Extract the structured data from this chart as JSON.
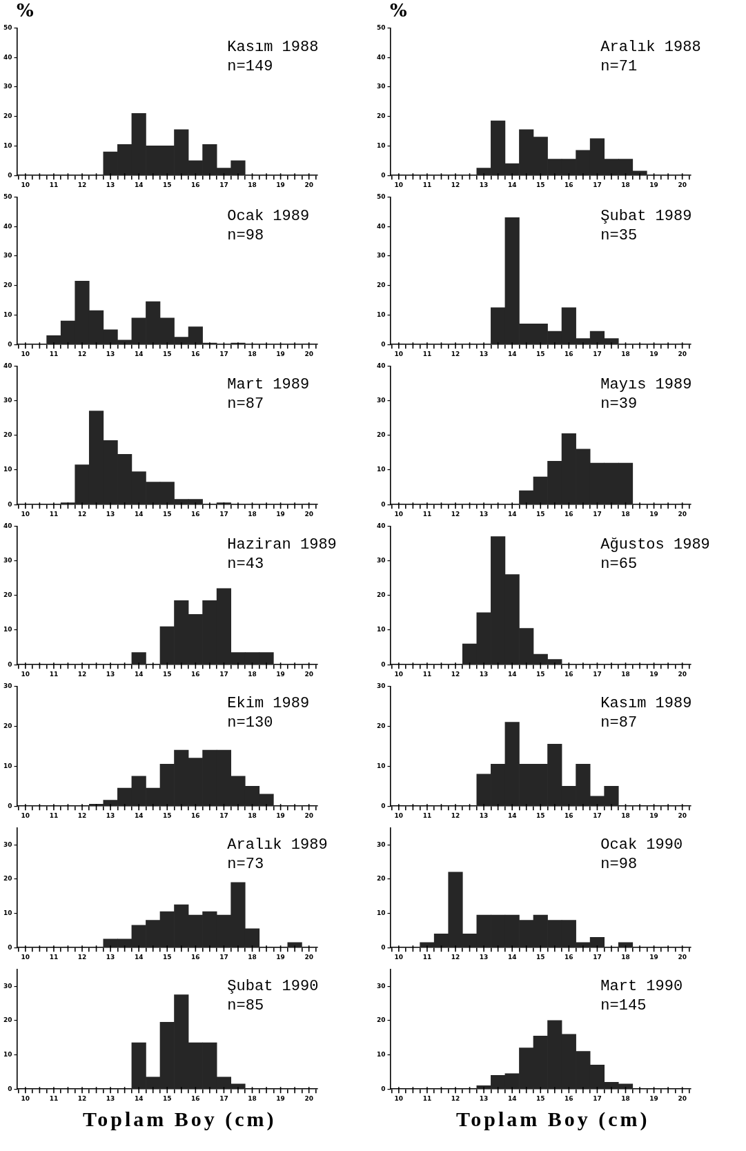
{
  "chart_data": [
    {
      "type": "histogram",
      "title": "Kasım 1988",
      "subtitle": "n=149",
      "ylabel": "%",
      "color": "#262626",
      "bins": [
        10.25,
        10.75,
        11.25,
        11.75,
        12.25,
        12.75,
        13.25,
        13.75,
        14.25,
        14.75,
        15.25,
        15.75,
        16.25,
        16.75,
        17.25,
        17.75,
        18.25,
        18.75,
        19.25,
        19.75
      ],
      "values": [
        0,
        0,
        0,
        0,
        0,
        8,
        10.5,
        21,
        10,
        10,
        15.5,
        5,
        10.5,
        2.5,
        5,
        0,
        0,
        0,
        0
      ],
      "xlim": [
        9.7,
        20.3
      ],
      "xticks": [
        10,
        {
          "value": 10.5,
          "label": null
        },
        11,
        {
          "value": 11.5,
          "label": null
        },
        12,
        {
          "value": 12.5,
          "label": null
        },
        13,
        {
          "value": 13.5,
          "label": null
        },
        14,
        {
          "value": 14.5,
          "label": null
        },
        15,
        {
          "value": 15.5,
          "label": null
        },
        16,
        {
          "value": 16.5,
          "label": null
        },
        17,
        {
          "value": 17.5,
          "label": null
        },
        18,
        {
          "value": 18.5,
          "label": null
        },
        19,
        {
          "value": 19.5,
          "label": null
        },
        20
      ],
      "ylim": [
        0,
        50
      ],
      "yticks": [
        0,
        10,
        20,
        30,
        40,
        50
      ]
    },
    {
      "type": "histogram",
      "title": "Aralık 1988",
      "subtitle": "n=71",
      "ylabel": "%",
      "color": "#262626",
      "bins": [
        10.25,
        10.75,
        11.25,
        11.75,
        12.25,
        12.75,
        13.25,
        13.75,
        14.25,
        14.75,
        15.25,
        15.75,
        16.25,
        16.75,
        17.25,
        17.75,
        18.25,
        18.75,
        19.25,
        19.75
      ],
      "values": [
        0,
        0,
        0,
        0,
        0,
        2.5,
        18.5,
        4,
        15.5,
        13,
        5.5,
        5.5,
        8.5,
        12.5,
        5.5,
        5.5,
        1.5,
        0,
        0
      ],
      "xlim": [
        9.7,
        20.3
      ],
      "xticks": [
        10,
        {
          "value": 10.5,
          "label": null
        },
        11,
        {
          "value": 11.5,
          "label": null
        },
        12,
        {
          "value": 12.5,
          "label": null
        },
        13,
        {
          "value": 13.5,
          "label": null
        },
        14,
        {
          "value": 14.5,
          "label": null
        },
        15,
        {
          "value": 15.5,
          "label": null
        },
        16,
        {
          "value": 16.5,
          "label": null
        },
        17,
        {
          "value": 17.5,
          "label": null
        },
        18,
        {
          "value": 18.5,
          "label": null
        },
        19,
        {
          "value": 19.5,
          "label": null
        },
        20
      ],
      "ylim": [
        0,
        50
      ],
      "yticks": [
        0,
        10,
        20,
        30,
        40,
        50
      ]
    },
    {
      "type": "histogram",
      "title": "Ocak 1989",
      "subtitle": "n=98",
      "color": "#262626",
      "bins": [
        10.25,
        10.75,
        11.25,
        11.75,
        12.25,
        12.75,
        13.25,
        13.75,
        14.25,
        14.75,
        15.25,
        15.75,
        16.25,
        16.75,
        17.25,
        17.75,
        18.25,
        18.75,
        19.25,
        19.75
      ],
      "values": [
        0,
        3,
        8,
        21.5,
        11.5,
        5,
        1.5,
        9,
        14.5,
        9,
        2.5,
        6,
        0.5,
        0,
        0.5,
        0,
        0,
        0,
        0
      ],
      "xlim": [
        9.7,
        20.3
      ],
      "xticks": [
        10,
        {
          "value": 10.5,
          "label": null
        },
        11,
        {
          "value": 11.5,
          "label": null
        },
        12,
        {
          "value": 12.5,
          "label": null
        },
        13,
        {
          "value": 13.5,
          "label": null
        },
        14,
        {
          "value": 14.5,
          "label": null
        },
        15,
        {
          "value": 15.5,
          "label": null
        },
        16,
        {
          "value": 16.5,
          "label": null
        },
        17,
        {
          "value": 17.5,
          "label": null
        },
        18,
        {
          "value": 18.5,
          "label": null
        },
        19,
        {
          "value": 19.5,
          "label": null
        },
        20
      ],
      "ylim": [
        0,
        50
      ],
      "yticks": [
        0,
        10,
        20,
        30,
        40,
        50
      ]
    },
    {
      "type": "histogram",
      "title": "Şubat 1989",
      "subtitle": "n=35",
      "color": "#262626",
      "bins": [
        10.25,
        10.75,
        11.25,
        11.75,
        12.25,
        12.75,
        13.25,
        13.75,
        14.25,
        14.75,
        15.25,
        15.75,
        16.25,
        16.75,
        17.25,
        17.75,
        18.25,
        18.75,
        19.25,
        19.75
      ],
      "values": [
        0,
        0,
        0,
        0,
        0,
        0,
        12.5,
        43,
        7,
        7,
        4.5,
        12.5,
        2,
        4.5,
        2,
        0,
        0,
        0,
        0
      ],
      "xlim": [
        9.7,
        20.3
      ],
      "xticks": [
        10,
        {
          "value": 10.5,
          "label": null
        },
        11,
        {
          "value": 11.5,
          "label": null
        },
        12,
        {
          "value": 12.5,
          "label": null
        },
        13,
        {
          "value": 13.5,
          "label": null
        },
        14,
        {
          "value": 14.5,
          "label": null
        },
        15,
        {
          "value": 15.5,
          "label": null
        },
        16,
        {
          "value": 16.5,
          "label": null
        },
        17,
        {
          "value": 17.5,
          "label": null
        },
        18,
        {
          "value": 18.5,
          "label": null
        },
        19,
        {
          "value": 19.5,
          "label": null
        },
        20
      ],
      "ylim": [
        0,
        50
      ],
      "yticks": [
        0,
        10,
        20,
        30,
        40,
        50
      ]
    },
    {
      "type": "histogram",
      "title": "Mart 1989",
      "subtitle": "n=87",
      "color": "#262626",
      "bins": [
        10.25,
        10.75,
        11.25,
        11.75,
        12.25,
        12.75,
        13.25,
        13.75,
        14.25,
        14.75,
        15.25,
        15.75,
        16.25,
        16.75,
        17.25,
        17.75,
        18.25,
        18.75,
        19.25,
        19.75
      ],
      "values": [
        0,
        0,
        0.5,
        11.5,
        27,
        18.5,
        14.5,
        9.5,
        6.5,
        6.5,
        1.5,
        1.5,
        0,
        0.5,
        0,
        0,
        0,
        0,
        0
      ],
      "xlim": [
        9.7,
        20.3
      ],
      "xticks": [
        10,
        {
          "value": 10.5,
          "label": null
        },
        11,
        {
          "value": 11.5,
          "label": null
        },
        12,
        {
          "value": 12.5,
          "label": null
        },
        13,
        {
          "value": 13.5,
          "label": null
        },
        14,
        {
          "value": 14.5,
          "label": null
        },
        15,
        {
          "value": 15.5,
          "label": null
        },
        16,
        {
          "value": 16.5,
          "label": null
        },
        17,
        {
          "value": 17.5,
          "label": null
        },
        18,
        {
          "value": 18.5,
          "label": null
        },
        19,
        {
          "value": 19.5,
          "label": null
        },
        20
      ],
      "ylim": [
        0,
        40
      ],
      "yticks": [
        0,
        10,
        20,
        30,
        40
      ]
    },
    {
      "type": "histogram",
      "title": "Mayıs 1989",
      "subtitle": "n=39",
      "color": "#262626",
      "bins": [
        10.25,
        10.75,
        11.25,
        11.75,
        12.25,
        12.75,
        13.25,
        13.75,
        14.25,
        14.75,
        15.25,
        15.75,
        16.25,
        16.75,
        17.25,
        17.75,
        18.25,
        18.75,
        19.25,
        19.75
      ],
      "values": [
        0,
        0,
        0,
        0,
        0,
        0,
        0,
        0,
        4,
        8,
        12.5,
        20.5,
        16,
        12,
        12,
        12,
        0,
        0,
        0
      ],
      "xlim": [
        9.7,
        20.3
      ],
      "xticks": [
        10,
        {
          "value": 10.5,
          "label": null
        },
        11,
        {
          "value": 11.5,
          "label": null
        },
        12,
        {
          "value": 12.5,
          "label": null
        },
        13,
        {
          "value": 13.5,
          "label": null
        },
        14,
        {
          "value": 14.5,
          "label": null
        },
        15,
        {
          "value": 15.5,
          "label": null
        },
        16,
        {
          "value": 16.5,
          "label": null
        },
        17,
        {
          "value": 17.5,
          "label": null
        },
        18,
        {
          "value": 18.5,
          "label": null
        },
        19,
        {
          "value": 19.5,
          "label": null
        },
        20
      ],
      "ylim": [
        0,
        40
      ],
      "yticks": [
        0,
        10,
        20,
        30,
        40
      ]
    },
    {
      "type": "histogram",
      "title": "Haziran 1989",
      "subtitle": "n=43",
      "color": "#262626",
      "bins": [
        10.25,
        10.75,
        11.25,
        11.75,
        12.25,
        12.75,
        13.25,
        13.75,
        14.25,
        14.75,
        15.25,
        15.75,
        16.25,
        16.75,
        17.25,
        17.75,
        18.25,
        18.75,
        19.25,
        19.75
      ],
      "values": [
        0,
        0,
        0,
        0,
        0,
        0,
        0,
        3.5,
        0,
        11,
        18.5,
        14.5,
        18.5,
        22,
        3.5,
        3.5,
        3.5,
        0,
        0
      ],
      "xlim": [
        9.7,
        20.3
      ],
      "xticks": [
        10,
        {
          "value": 10.5,
          "label": null
        },
        11,
        {
          "value": 11.5,
          "label": null
        },
        12,
        {
          "value": 12.5,
          "label": null
        },
        13,
        {
          "value": 13.5,
          "label": null
        },
        14,
        {
          "value": 14.5,
          "label": null
        },
        15,
        {
          "value": 15.5,
          "label": null
        },
        16,
        {
          "value": 16.5,
          "label": null
        },
        17,
        {
          "value": 17.5,
          "label": null
        },
        18,
        {
          "value": 18.5,
          "label": null
        },
        19,
        {
          "value": 19.5,
          "label": null
        },
        20
      ],
      "ylim": [
        0,
        40
      ],
      "yticks": [
        0,
        10,
        20,
        30,
        40
      ]
    },
    {
      "type": "histogram",
      "title": "Ağustos 1989",
      "subtitle": "n=65",
      "color": "#262626",
      "bins": [
        10.25,
        10.75,
        11.25,
        11.75,
        12.25,
        12.75,
        13.25,
        13.75,
        14.25,
        14.75,
        15.25,
        15.75,
        16.25,
        16.75,
        17.25,
        17.75,
        18.25,
        18.75,
        19.25,
        19.75
      ],
      "values": [
        0,
        0,
        0,
        0,
        6,
        15,
        37,
        26,
        10.5,
        3,
        1.5,
        0,
        0,
        0,
        0,
        0,
        0,
        0,
        0
      ],
      "xlim": [
        9.7,
        20.3
      ],
      "xticks": [
        10,
        {
          "value": 10.5,
          "label": null
        },
        11,
        {
          "value": 11.5,
          "label": null
        },
        12,
        {
          "value": 12.5,
          "label": null
        },
        13,
        {
          "value": 13.5,
          "label": null
        },
        14,
        {
          "value": 14.5,
          "label": null
        },
        15,
        {
          "value": 15.5,
          "label": null
        },
        16,
        {
          "value": 16.5,
          "label": null
        },
        17,
        {
          "value": 17.5,
          "label": null
        },
        18,
        {
          "value": 18.5,
          "label": null
        },
        19,
        {
          "value": 19.5,
          "label": null
        },
        20
      ],
      "ylim": [
        0,
        40
      ],
      "yticks": [
        0,
        10,
        20,
        30,
        40
      ]
    },
    {
      "type": "histogram",
      "title": "Ekim 1989",
      "subtitle": "n=130",
      "color": "#262626",
      "bins": [
        10.25,
        10.75,
        11.25,
        11.75,
        12.25,
        12.75,
        13.25,
        13.75,
        14.25,
        14.75,
        15.25,
        15.75,
        16.25,
        16.75,
        17.25,
        17.75,
        18.25,
        18.75,
        19.25,
        19.75
      ],
      "values": [
        0,
        0,
        0,
        0,
        0.5,
        1.5,
        4.5,
        7.5,
        4.5,
        10.5,
        14,
        12,
        14,
        14,
        7.5,
        5,
        3,
        0,
        0
      ],
      "xlim": [
        9.7,
        20.3
      ],
      "xticks": [
        10,
        {
          "value": 10.5,
          "label": null
        },
        11,
        {
          "value": 11.5,
          "label": null
        },
        12,
        {
          "value": 12.5,
          "label": null
        },
        13,
        {
          "value": 13.5,
          "label": null
        },
        14,
        {
          "value": 14.5,
          "label": null
        },
        15,
        {
          "value": 15.5,
          "label": null
        },
        16,
        {
          "value": 16.5,
          "label": null
        },
        17,
        {
          "value": 17.5,
          "label": null
        },
        18,
        {
          "value": 18.5,
          "label": null
        },
        19,
        {
          "value": 19.5,
          "label": null
        },
        20
      ],
      "ylim": [
        0,
        30
      ],
      "yticks": [
        0,
        10,
        20,
        30
      ]
    },
    {
      "type": "histogram",
      "title": "Kasım 1989",
      "subtitle": "n=87",
      "color": "#262626",
      "bins": [
        10.25,
        10.75,
        11.25,
        11.75,
        12.25,
        12.75,
        13.25,
        13.75,
        14.25,
        14.75,
        15.25,
        15.75,
        16.25,
        16.75,
        17.25,
        17.75,
        18.25,
        18.75,
        19.25,
        19.75
      ],
      "values": [
        0,
        0,
        0,
        0,
        0,
        8,
        10.5,
        21,
        10.5,
        10.5,
        15.5,
        5,
        10.5,
        2.5,
        5,
        0,
        0,
        0,
        0
      ],
      "xlim": [
        9.7,
        20.3
      ],
      "xticks": [
        10,
        {
          "value": 10.5,
          "label": null
        },
        11,
        {
          "value": 11.5,
          "label": null
        },
        12,
        {
          "value": 12.5,
          "label": null
        },
        13,
        {
          "value": 13.5,
          "label": null
        },
        14,
        {
          "value": 14.5,
          "label": null
        },
        15,
        {
          "value": 15.5,
          "label": null
        },
        16,
        {
          "value": 16.5,
          "label": null
        },
        17,
        {
          "value": 17.5,
          "label": null
        },
        18,
        {
          "value": 18.5,
          "label": null
        },
        19,
        {
          "value": 19.5,
          "label": null
        },
        20
      ],
      "ylim": [
        0,
        30
      ],
      "yticks": [
        0,
        10,
        20,
        30
      ]
    },
    {
      "type": "histogram",
      "title": "Aralık 1989",
      "subtitle": "n=73",
      "color": "#262626",
      "bins": [
        10.25,
        10.75,
        11.25,
        11.75,
        12.25,
        12.75,
        13.25,
        13.75,
        14.25,
        14.75,
        15.25,
        15.75,
        16.25,
        16.75,
        17.25,
        17.75,
        18.25,
        18.75,
        19.25,
        19.75
      ],
      "values": [
        0,
        0,
        0,
        0,
        0,
        2.5,
        2.5,
        6.5,
        8,
        10.5,
        12.5,
        9.5,
        10.5,
        9.5,
        19,
        5.5,
        0,
        0,
        1.5
      ],
      "xlim": [
        9.7,
        20.3
      ],
      "xticks": [
        10,
        {
          "value": 10.5,
          "label": null
        },
        11,
        {
          "value": 11.5,
          "label": null
        },
        12,
        {
          "value": 12.5,
          "label": null
        },
        13,
        {
          "value": 13.5,
          "label": null
        },
        14,
        {
          "value": 14.5,
          "label": null
        },
        15,
        {
          "value": 15.5,
          "label": null
        },
        16,
        {
          "value": 16.5,
          "label": null
        },
        17,
        {
          "value": 17.5,
          "label": null
        },
        18,
        {
          "value": 18.5,
          "label": null
        },
        19,
        {
          "value": 19.5,
          "label": null
        },
        20
      ],
      "ylim": [
        0,
        35
      ],
      "yticks": [
        0,
        10,
        20,
        30
      ]
    },
    {
      "type": "histogram",
      "title": "Ocak 1990",
      "subtitle": "n=98",
      "color": "#262626",
      "bins": [
        10.25,
        10.75,
        11.25,
        11.75,
        12.25,
        12.75,
        13.25,
        13.75,
        14.25,
        14.75,
        15.25,
        15.75,
        16.25,
        16.75,
        17.25,
        17.75,
        18.25,
        18.75,
        19.25,
        19.75
      ],
      "values": [
        0,
        1.5,
        4,
        22,
        4,
        9.5,
        9.5,
        9.5,
        8,
        9.5,
        8,
        8,
        1.5,
        3,
        0,
        1.5,
        0,
        0,
        0
      ],
      "xlim": [
        9.7,
        20.3
      ],
      "xticks": [
        10,
        {
          "value": 10.5,
          "label": null
        },
        11,
        {
          "value": 11.5,
          "label": null
        },
        12,
        {
          "value": 12.5,
          "label": null
        },
        13,
        {
          "value": 13.5,
          "label": null
        },
        14,
        {
          "value": 14.5,
          "label": null
        },
        15,
        {
          "value": 15.5,
          "label": null
        },
        16,
        {
          "value": 16.5,
          "label": null
        },
        17,
        {
          "value": 17.5,
          "label": null
        },
        18,
        {
          "value": 18.5,
          "label": null
        },
        19,
        {
          "value": 19.5,
          "label": null
        },
        20
      ],
      "ylim": [
        0,
        35
      ],
      "yticks": [
        0,
        10,
        20,
        30
      ]
    },
    {
      "type": "histogram",
      "title": "Şubat 1990",
      "subtitle": "n=85",
      "xlabel": "Toplam Boy (cm)",
      "color": "#262626",
      "bins": [
        10.25,
        10.75,
        11.25,
        11.75,
        12.25,
        12.75,
        13.25,
        13.75,
        14.25,
        14.75,
        15.25,
        15.75,
        16.25,
        16.75,
        17.25,
        17.75,
        18.25,
        18.75,
        19.25,
        19.75
      ],
      "values": [
        0,
        0,
        0,
        0,
        0,
        0,
        0,
        13.5,
        3.5,
        19.5,
        27.5,
        13.5,
        13.5,
        3.5,
        1.5,
        0,
        0,
        0,
        0
      ],
      "xlim": [
        9.7,
        20.3
      ],
      "xticks": [
        10,
        {
          "value": 10.5,
          "label": null
        },
        11,
        {
          "value": 11.5,
          "label": null
        },
        12,
        {
          "value": 12.5,
          "label": null
        },
        13,
        {
          "value": 13.5,
          "label": null
        },
        14,
        {
          "value": 14.5,
          "label": null
        },
        15,
        {
          "value": 15.5,
          "label": null
        },
        16,
        {
          "value": 16.5,
          "label": null
        },
        17,
        {
          "value": 17.5,
          "label": null
        },
        18,
        {
          "value": 18.5,
          "label": null
        },
        19,
        {
          "value": 19.5,
          "label": null
        },
        20
      ],
      "ylim": [
        0,
        35
      ],
      "yticks": [
        0,
        10,
        20,
        30
      ]
    },
    {
      "type": "histogram",
      "title": "Mart 1990",
      "subtitle": "n=145",
      "xlabel": "Toplam Boy (cm)",
      "color": "#262626",
      "bins": [
        10.25,
        10.75,
        11.25,
        11.75,
        12.25,
        12.75,
        13.25,
        13.75,
        14.25,
        14.75,
        15.25,
        15.75,
        16.25,
        16.75,
        17.25,
        17.75,
        18.25,
        18.75,
        19.25,
        19.75
      ],
      "values": [
        0,
        0,
        0,
        0,
        0,
        1,
        4,
        4.5,
        12,
        15.5,
        20,
        16,
        11,
        7,
        2,
        1.5,
        0,
        0,
        0
      ],
      "xlim": [
        9.7,
        20.3
      ],
      "xticks": [
        10,
        {
          "value": 10.5,
          "label": null
        },
        11,
        {
          "value": 11.5,
          "label": null
        },
        12,
        {
          "value": 12.5,
          "label": null
        },
        13,
        {
          "value": 13.5,
          "label": null
        },
        14,
        {
          "value": 14.5,
          "label": null
        },
        15,
        {
          "value": 15.5,
          "label": null
        },
        16,
        {
          "value": 16.5,
          "label": null
        },
        17,
        {
          "value": 17.5,
          "label": null
        },
        18,
        {
          "value": 18.5,
          "label": null
        },
        19,
        {
          "value": 19.5,
          "label": null
        },
        20
      ],
      "ylim": [
        0,
        35
      ],
      "yticks": [
        0,
        10,
        20,
        30
      ]
    }
  ]
}
